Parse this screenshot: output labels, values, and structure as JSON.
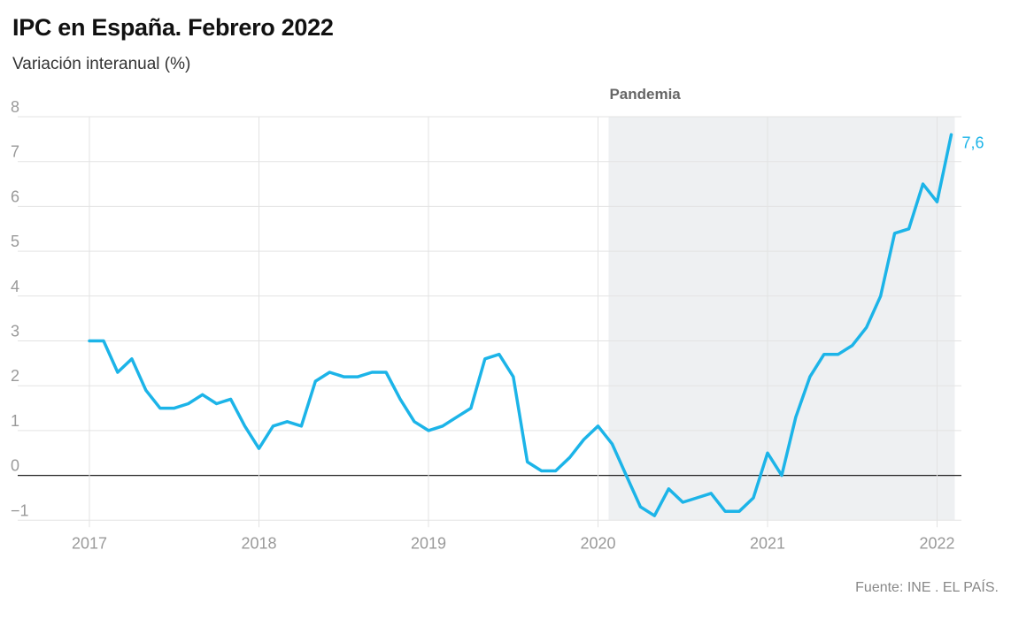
{
  "chart_data": {
    "type": "line",
    "title": "IPC en España. Febrero 2022",
    "subtitle": "Variación interanual (%)",
    "xlabel": "",
    "ylabel": "",
    "x_tick_labels": [
      "2017",
      "2018",
      "2019",
      "2020",
      "2021",
      "2022"
    ],
    "y_tick_labels": [
      "8",
      "7",
      "6",
      "5",
      "4",
      "3",
      "2",
      "1",
      "0",
      "−1"
    ],
    "ylim": [
      -1,
      8
    ],
    "xlim": [
      "2017-01",
      "2022-02"
    ],
    "grid": true,
    "zero_line": true,
    "shaded_period": {
      "label": "Pandemia",
      "from": "2020-02",
      "to": "2022-02"
    },
    "end_label": "7,6",
    "series": [
      {
        "color": "#1cb4e8",
        "x": [
          "2017-01",
          "2017-02",
          "2017-03",
          "2017-04",
          "2017-05",
          "2017-06",
          "2017-07",
          "2017-08",
          "2017-09",
          "2017-10",
          "2017-11",
          "2017-12",
          "2018-01",
          "2018-02",
          "2018-03",
          "2018-04",
          "2018-05",
          "2018-06",
          "2018-07",
          "2018-08",
          "2018-09",
          "2018-10",
          "2018-11",
          "2018-12",
          "2019-01",
          "2019-02",
          "2019-03",
          "2019-04",
          "2019-05",
          "2019-06",
          "2019-07",
          "2019-08",
          "2019-09",
          "2019-10",
          "2019-11",
          "2019-12",
          "2020-01",
          "2020-02",
          "2020-03",
          "2020-04",
          "2020-05",
          "2020-06",
          "2020-07",
          "2020-08",
          "2020-09",
          "2020-10",
          "2020-11",
          "2020-12",
          "2021-01",
          "2021-02",
          "2021-03",
          "2021-04",
          "2021-05",
          "2021-06",
          "2021-07",
          "2021-08",
          "2021-09",
          "2021-10",
          "2021-11",
          "2021-12",
          "2022-01",
          "2022-02"
        ],
        "values": [
          3.0,
          3.0,
          2.3,
          2.6,
          1.9,
          1.5,
          1.5,
          1.6,
          1.8,
          1.6,
          1.7,
          1.1,
          0.6,
          1.1,
          1.2,
          1.1,
          2.1,
          2.3,
          2.2,
          2.2,
          2.3,
          2.3,
          1.7,
          1.2,
          1.0,
          1.1,
          1.3,
          1.5,
          2.6,
          2.7,
          2.2,
          0.3,
          0.1,
          0.1,
          0.4,
          0.8,
          1.1,
          0.7,
          0.0,
          -0.7,
          -0.9,
          -0.3,
          -0.6,
          -0.5,
          -0.4,
          -0.8,
          -0.8,
          -0.5,
          0.5,
          0.0,
          1.3,
          2.2,
          2.7,
          2.7,
          2.9,
          3.3,
          4.0,
          5.4,
          5.5,
          6.5,
          6.1,
          7.6
        ]
      }
    ]
  },
  "source": "Fuente: INE . EL PAÍS."
}
